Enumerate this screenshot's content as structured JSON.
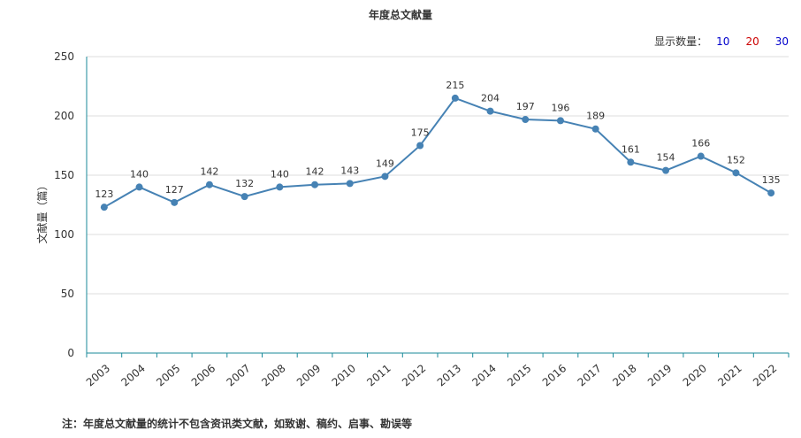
{
  "title": "年度总文献量",
  "count_selector": {
    "label": "显示数量：",
    "options": [
      {
        "label": "10",
        "color": "#0000cc"
      },
      {
        "label": "20",
        "color": "#cc0000"
      },
      {
        "label": "30",
        "color": "#0000cc"
      }
    ]
  },
  "footnote": "注：年度总文献量的统计不包含资讯类文献，如致谢、稿约、启事、勘误等",
  "chart_data": {
    "type": "line",
    "title": "年度总文献量",
    "ylabel": "文献量（篇）",
    "xlabel": "",
    "ylim": [
      0,
      250
    ],
    "yticks": [
      0,
      50,
      100,
      150,
      200,
      250
    ],
    "grid": true,
    "x": [
      "2003",
      "2004",
      "2005",
      "2006",
      "2007",
      "2008",
      "2009",
      "2010",
      "2011",
      "2012",
      "2013",
      "2014",
      "2015",
      "2016",
      "2017",
      "2018",
      "2019",
      "2020",
      "2021",
      "2022"
    ],
    "series": [
      {
        "color": "#4682b4",
        "values": [
          123,
          140,
          127,
          142,
          132,
          140,
          142,
          143,
          149,
          175,
          215,
          204,
          197,
          196,
          189,
          161,
          154,
          166,
          152,
          135
        ]
      }
    ]
  }
}
